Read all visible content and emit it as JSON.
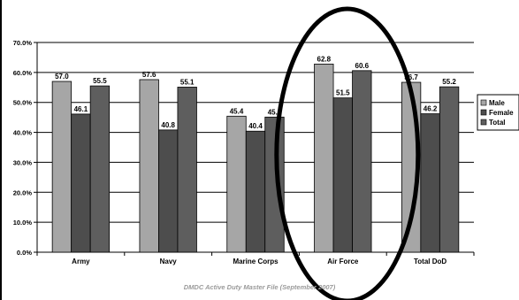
{
  "chart_data": {
    "type": "bar",
    "categories": [
      "Army",
      "Navy",
      "Marine Corps",
      "Air Force",
      "Total DoD"
    ],
    "series": [
      {
        "name": "Male",
        "values": [
          57.0,
          57.6,
          45.4,
          62.8,
          56.7
        ],
        "color": "#a6a6a6"
      },
      {
        "name": "Female",
        "values": [
          46.1,
          40.8,
          40.4,
          51.5,
          46.2
        ],
        "color": "#4d4d4d"
      },
      {
        "name": "Total",
        "values": [
          55.5,
          55.1,
          45.1,
          60.6,
          55.2
        ],
        "color": "#5e5e5e"
      }
    ],
    "value_labels": [
      [
        "57.0",
        "57.6",
        "45.4",
        "62.8",
        "56.7"
      ],
      [
        "46.1",
        "40.8",
        "40.4",
        "51.5",
        "46.2"
      ],
      [
        "55.5",
        "55.1",
        "45.1",
        "60.6",
        "55.2"
      ]
    ],
    "ylim": [
      0,
      70
    ],
    "yticks": [
      "0.0%",
      "10.0%",
      "20.0%",
      "30.0%",
      "40.0%",
      "50.0%",
      "60.0%",
      "70.0%"
    ],
    "grid": true,
    "legend": "right",
    "highlight": "Air Force",
    "source": "DMDC Active Duty Master File (September 2007)"
  }
}
